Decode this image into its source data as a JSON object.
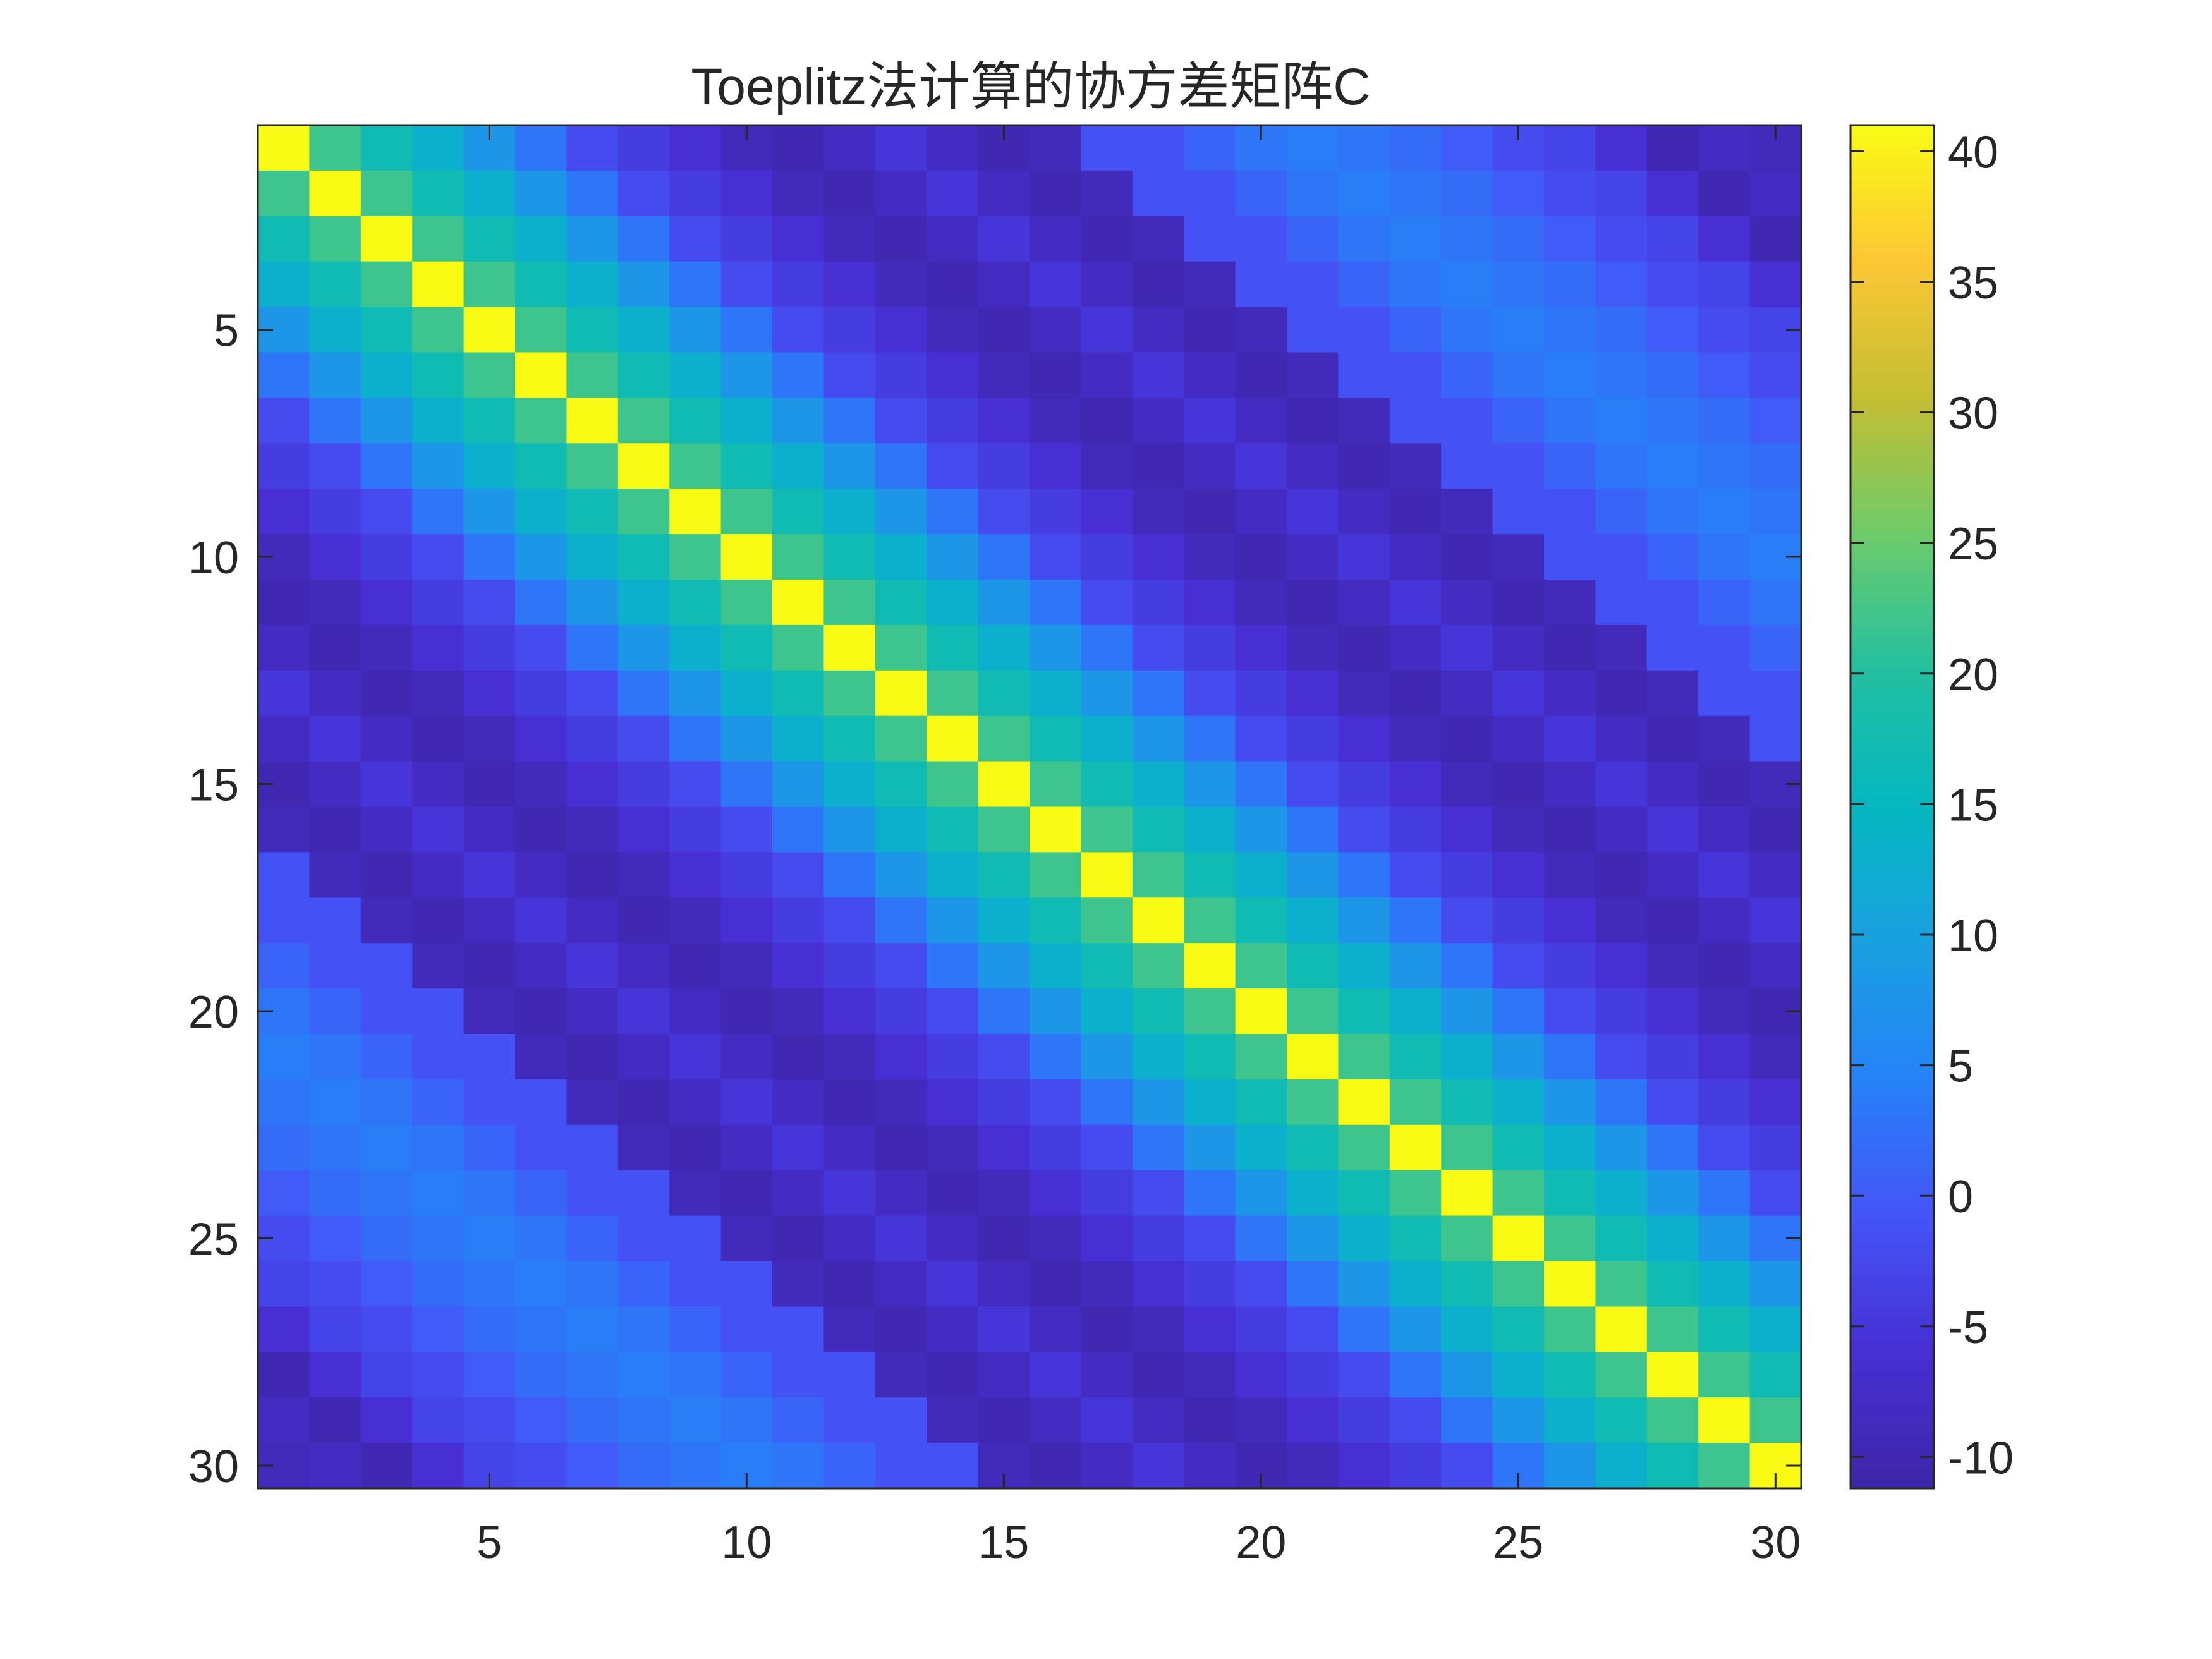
{
  "chart_data": {
    "type": "heatmap",
    "title": "Toeplitz法计算的协方差矩阵C",
    "xlabel": "",
    "ylabel": "",
    "n": 30,
    "toeplitz_first_row": [
      41,
      22,
      17,
      13,
      8,
      3,
      -2,
      -4,
      -6,
      -9,
      -10,
      -8,
      -5,
      -8,
      -10,
      -9,
      -1,
      -1,
      1,
      3,
      4,
      3,
      2,
      0,
      -2,
      -3,
      -6,
      -10,
      -8,
      -9
    ],
    "x_ticks": [
      5,
      10,
      15,
      20,
      25,
      30
    ],
    "y_ticks": [
      5,
      10,
      15,
      20,
      25,
      30
    ],
    "colorbar": {
      "ticks": [
        40,
        35,
        30,
        25,
        20,
        15,
        10,
        5,
        0,
        -5,
        -10
      ],
      "clim": [
        -11.2,
        41
      ],
      "colormap": "parula"
    },
    "grid": false
  }
}
